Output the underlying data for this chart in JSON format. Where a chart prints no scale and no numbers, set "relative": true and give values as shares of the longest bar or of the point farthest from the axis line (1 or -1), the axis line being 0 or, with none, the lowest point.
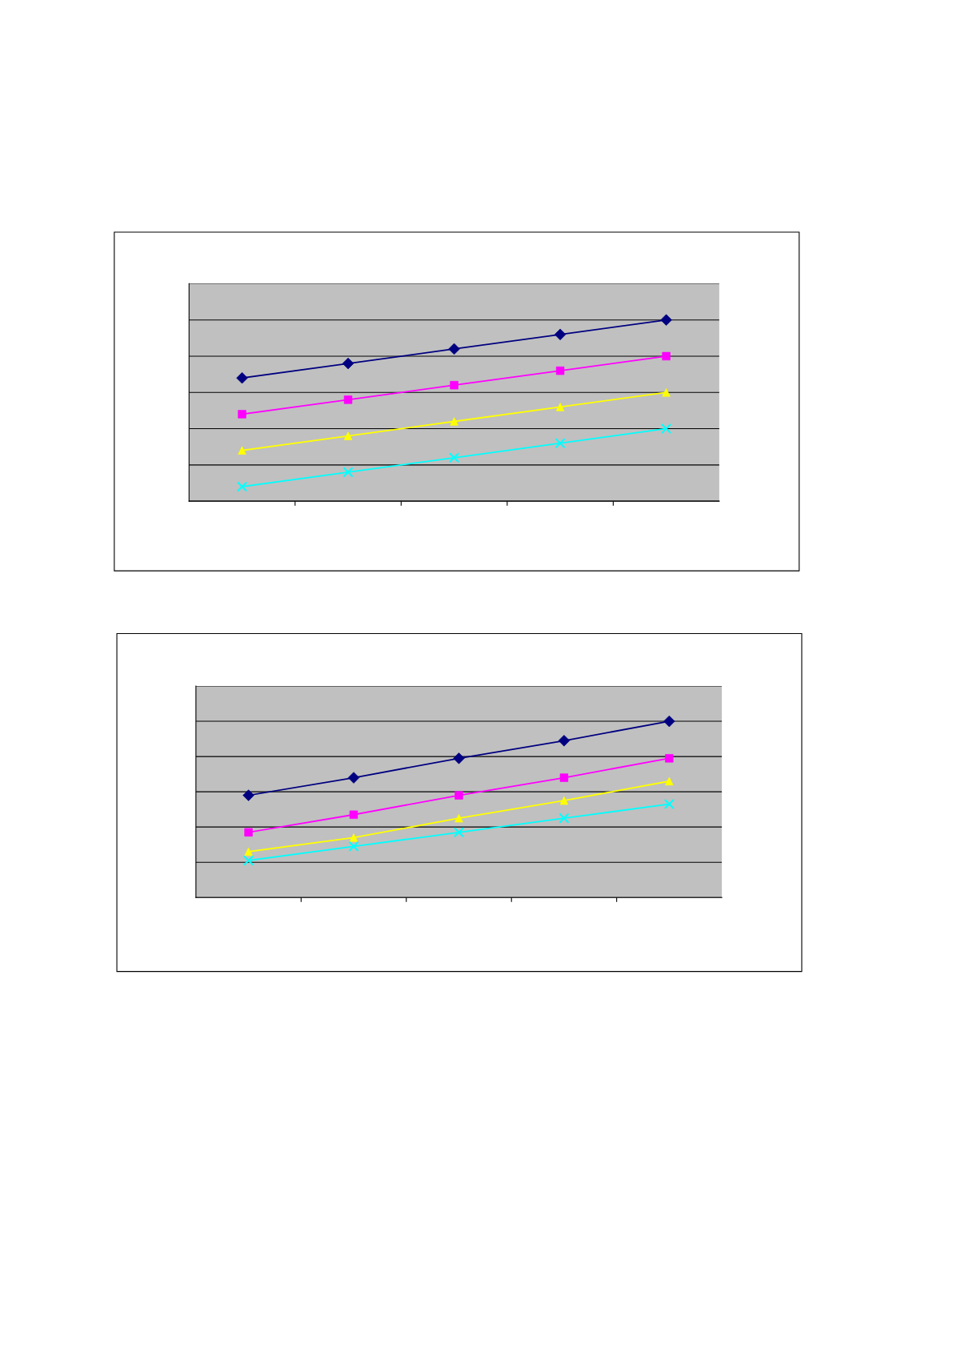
{
  "chart_data": [
    {
      "type": "line",
      "relative": true,
      "categories": [
        null,
        null,
        null,
        null,
        null
      ],
      "grid": "y",
      "tick_labels": false,
      "series": [
        {
          "color": "#000080",
          "marker": "diamond",
          "values": [
            0.68,
            0.76,
            0.84,
            0.92,
            1.0
          ]
        },
        {
          "color": "#ff00ff",
          "marker": "square",
          "values": [
            0.48,
            0.56,
            0.64,
            0.72,
            0.8
          ]
        },
        {
          "color": "#ffff00",
          "marker": "triangle",
          "values": [
            0.28,
            0.36,
            0.44,
            0.52,
            0.6
          ]
        },
        {
          "color": "#00ffff",
          "marker": "cross",
          "values": [
            0.08,
            0.16,
            0.24,
            0.32,
            0.4
          ]
        }
      ]
    },
    {
      "type": "line",
      "relative": true,
      "categories": [
        null,
        null,
        null,
        null,
        null
      ],
      "grid": "y",
      "tick_labels": false,
      "series": [
        {
          "color": "#000080",
          "marker": "diamond",
          "values": [
            0.58,
            0.68,
            0.79,
            0.89,
            1.0
          ]
        },
        {
          "color": "#ff00ff",
          "marker": "square",
          "values": [
            0.37,
            0.47,
            0.58,
            0.68,
            0.79
          ]
        },
        {
          "color": "#ffff00",
          "marker": "triangle",
          "values": [
            0.26,
            0.34,
            0.45,
            0.55,
            0.66
          ]
        },
        {
          "color": "#00ffff",
          "marker": "cross",
          "values": [
            0.21,
            0.29,
            0.37,
            0.45,
            0.53
          ]
        }
      ]
    }
  ]
}
